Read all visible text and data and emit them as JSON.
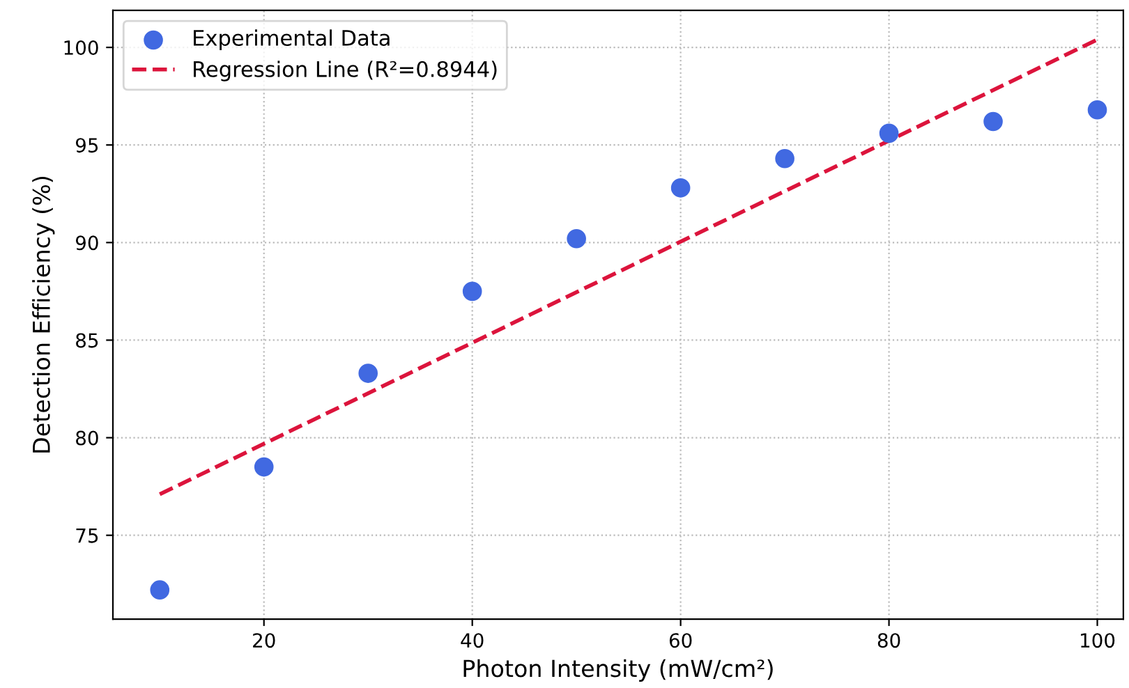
{
  "chart_data": {
    "type": "scatter",
    "xlabel": "Photon Intensity (mW/cm²)",
    "ylabel": "Detection Efficiency (%)",
    "x": [
      10,
      20,
      30,
      40,
      50,
      60,
      70,
      80,
      90,
      100
    ],
    "series": [
      {
        "name": "Experimental Data",
        "type": "scatter",
        "color": "#4169e1",
        "marker": "circle",
        "values": [
          72.2,
          78.5,
          83.3,
          87.5,
          90.2,
          92.8,
          94.3,
          95.6,
          96.2,
          96.8
        ]
      },
      {
        "name": "Regression Line (R²=0.8944)",
        "type": "line",
        "color": "#dc143c",
        "line_style": "dashed",
        "x": [
          10,
          100
        ],
        "values": [
          77.1,
          100.4
        ]
      }
    ],
    "xlim": [
      5.5,
      102.5
    ],
    "ylim": [
      70.7,
      101.9
    ],
    "xticks": [
      20,
      40,
      60,
      80,
      100
    ],
    "yticks": [
      75,
      80,
      85,
      90,
      95,
      100
    ],
    "grid": true,
    "legend": "top left"
  }
}
